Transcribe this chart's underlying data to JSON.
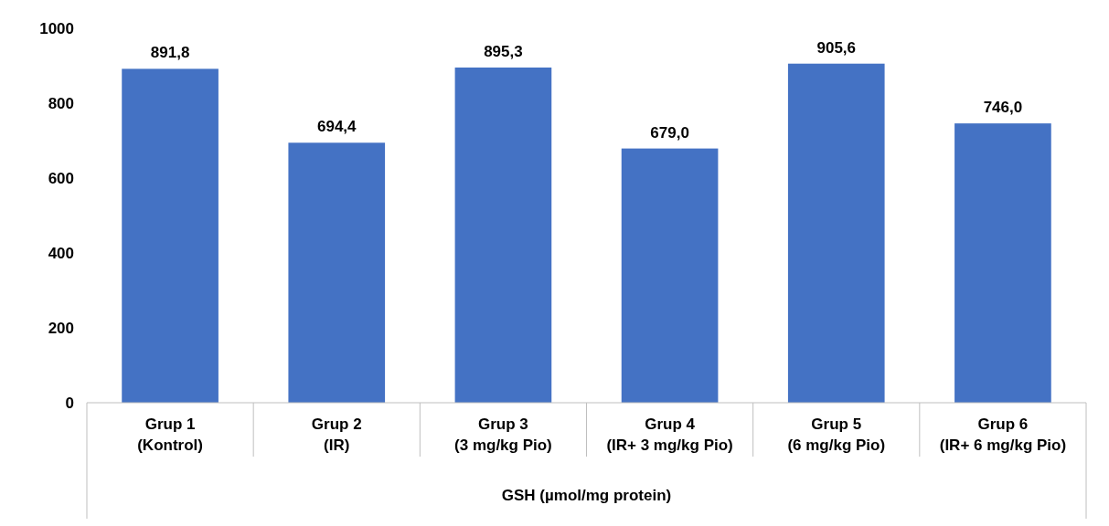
{
  "chart_data": {
    "type": "bar",
    "xlabel": "GSH (µmol/mg protein)",
    "categories": [
      "Grup 1\n(Kontrol)",
      "Grup 2\n(IR)",
      "Grup 3\n(3 mg/kg Pio)",
      "Grup 4\n(IR+ 3 mg/kg Pio)",
      "Grup 5\n(6 mg/kg Pio)",
      "Grup 6\n(IR+ 6 mg/kg Pio)"
    ],
    "values": [
      891.8,
      694.4,
      895.3,
      679.0,
      905.6,
      746.0
    ],
    "value_labels": [
      "891,8",
      "694,4",
      "895,3",
      "679,0",
      "905,6",
      "746,0"
    ],
    "color": "#4472c4",
    "ylim": [
      0,
      1000
    ],
    "yticks": [
      0,
      200,
      400,
      600,
      800,
      1000
    ],
    "grid": false
  }
}
